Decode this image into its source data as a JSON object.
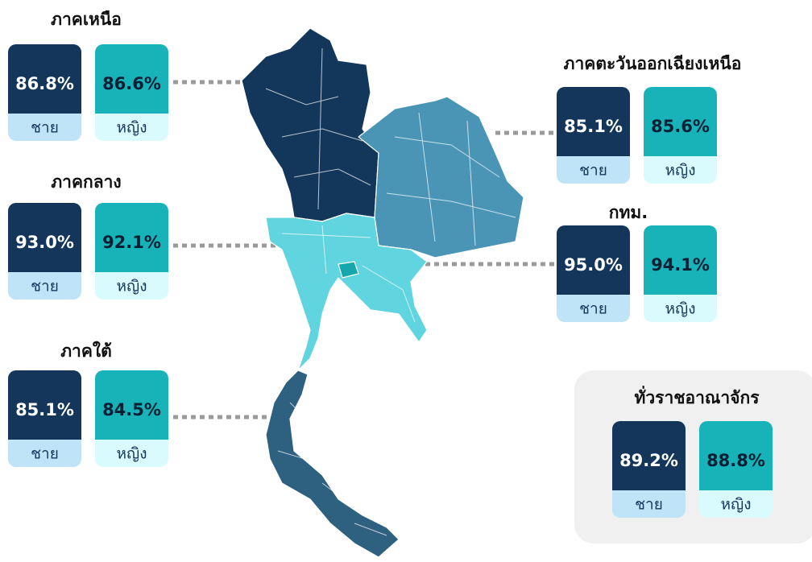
{
  "regions": [
    {
      "name": "ภาคเหนือ",
      "male": {
        "value": 86.8,
        "label": "86.8%"
      },
      "female": {
        "value": 86.6,
        "label": "86.6%"
      }
    },
    {
      "name": "ภาคกลาง",
      "male": {
        "value": 93.0,
        "label": "93.0%"
      },
      "female": {
        "value": 92.1,
        "label": "92.1%"
      }
    },
    {
      "name": "ภาคใต้",
      "male": {
        "value": 85.1,
        "label": "85.1%"
      },
      "female": {
        "value": 84.5,
        "label": "84.5%"
      }
    },
    {
      "name": "ภาคตะวันออกเฉียงเหนือ",
      "male": {
        "value": 85.1,
        "label": "85.1%"
      },
      "female": {
        "value": 85.6,
        "label": "85.6%"
      }
    },
    {
      "name": "กทม.",
      "male": {
        "value": 95.0,
        "label": "95.0%"
      },
      "female": {
        "value": 94.1,
        "label": "94.1%"
      }
    },
    {
      "name": "ทั่วราชอาณาจักร",
      "male": {
        "value": 89.2,
        "label": "89.2%"
      },
      "female": {
        "value": 88.8,
        "label": "88.8%"
      }
    }
  ],
  "labels": {
    "male": "ชาย",
    "female": "หญิง"
  }
}
